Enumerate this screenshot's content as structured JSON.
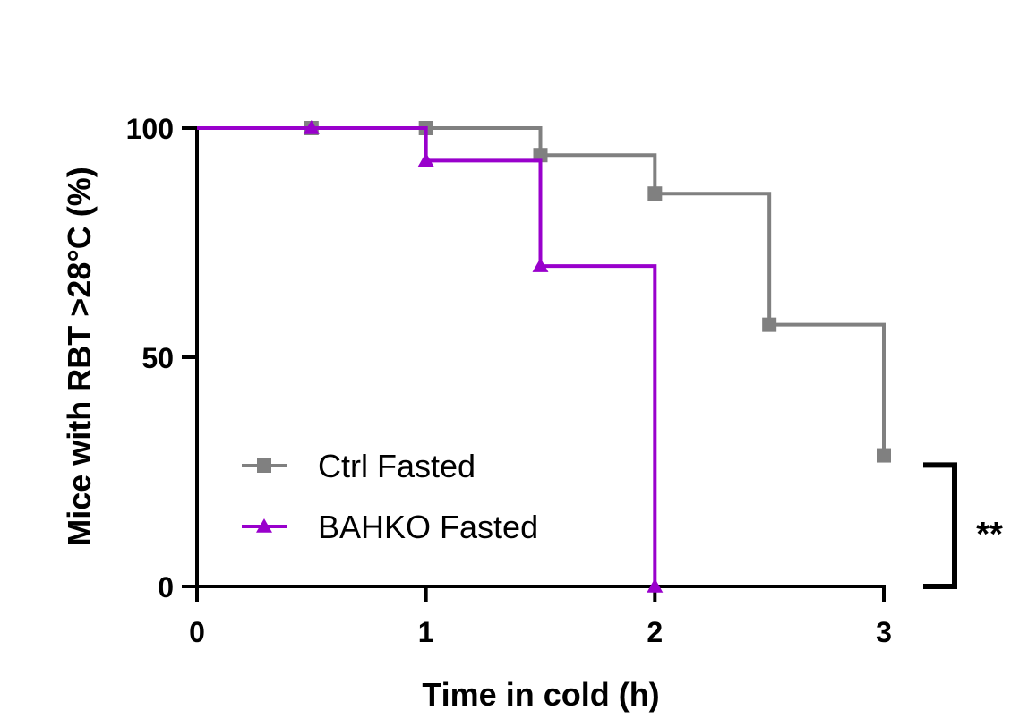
{
  "chart_data": {
    "type": "line",
    "step": true,
    "xlabel": "Time in cold (h)",
    "ylabel": "Mice with RBT >28°C (%)",
    "xlim": [
      0,
      3
    ],
    "ylim": [
      0,
      100
    ],
    "xticks": [
      0,
      1,
      2,
      3
    ],
    "yticks": [
      0,
      50,
      100
    ],
    "grid": false,
    "legend_position": "bottom-left",
    "series": [
      {
        "name": "Ctrl Fasted",
        "color": "#808080",
        "marker": "square",
        "steps": [
          [
            0,
            100
          ],
          [
            1.5,
            94.1
          ],
          [
            2,
            85.7
          ],
          [
            2.5,
            57.1
          ],
          [
            3,
            28.6
          ]
        ],
        "markers": [
          [
            0.5,
            100
          ],
          [
            1,
            100
          ],
          [
            1.5,
            94.1
          ],
          [
            2,
            85.7
          ],
          [
            2.5,
            57.1
          ],
          [
            3,
            28.6
          ]
        ]
      },
      {
        "name": "BAHKO Fasted",
        "color": "#9900cc",
        "marker": "triangle",
        "steps": [
          [
            0,
            100
          ],
          [
            1,
            92.9
          ],
          [
            1.5,
            69.9
          ],
          [
            2,
            0
          ]
        ],
        "markers": [
          [
            0.5,
            100
          ],
          [
            1,
            92.9
          ],
          [
            1.5,
            69.9
          ],
          [
            2,
            0
          ]
        ]
      }
    ],
    "annotation": {
      "text": "**",
      "bracket_y": [
        0,
        26.5
      ]
    }
  }
}
